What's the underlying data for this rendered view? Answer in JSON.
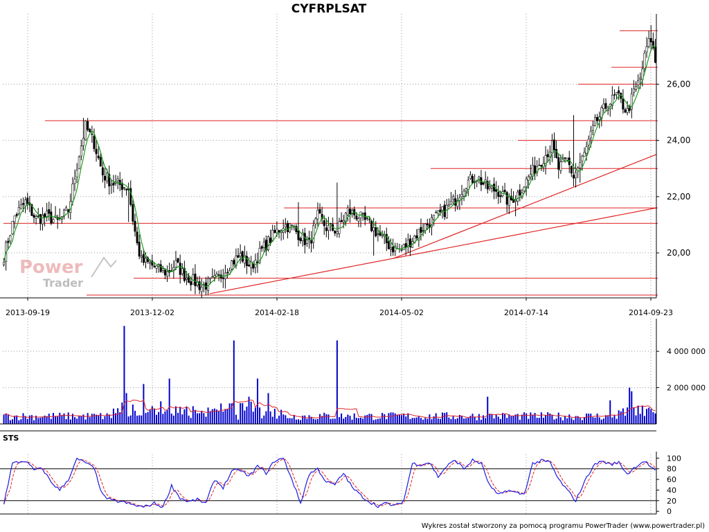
{
  "chart_data": [
    {
      "type": "candlestick",
      "title": "CYFRPLSAT",
      "x_tick_labels": [
        "2013-09-19",
        "2013-12-02",
        "2014-02-18",
        "2014-05-02",
        "2014-07-14",
        "2014-09-23"
      ],
      "y_tick_labels": [
        "20,00",
        "22,00",
        "24,00",
        "26,00"
      ],
      "ylim": [
        18.4,
        28.5
      ],
      "grid": true,
      "close_anchors": [
        [
          0,
          19.9
        ],
        [
          5,
          21.3
        ],
        [
          10,
          21.8
        ],
        [
          15,
          21.2
        ],
        [
          20,
          21.3
        ],
        [
          25,
          21.1
        ],
        [
          30,
          21.5
        ],
        [
          35,
          23.5
        ],
        [
          38,
          24.5
        ],
        [
          42,
          23.9
        ],
        [
          46,
          22.8
        ],
        [
          50,
          22.5
        ],
        [
          55,
          22.4
        ],
        [
          58,
          22.3
        ],
        [
          60,
          21.2
        ],
        [
          62,
          20.3
        ],
        [
          64,
          19.7
        ],
        [
          68,
          19.6
        ],
        [
          72,
          19.4
        ],
        [
          76,
          19.3
        ],
        [
          80,
          19.6
        ],
        [
          84,
          19.2
        ],
        [
          88,
          19.0
        ],
        [
          92,
          18.8
        ],
        [
          95,
          18.9
        ],
        [
          100,
          19.1
        ],
        [
          105,
          19.6
        ],
        [
          110,
          19.9
        ],
        [
          115,
          19.5
        ],
        [
          120,
          20.1
        ],
        [
          125,
          20.6
        ],
        [
          130,
          21.0
        ],
        [
          134,
          20.9
        ],
        [
          138,
          20.6
        ],
        [
          142,
          20.3
        ],
        [
          146,
          21.3
        ],
        [
          150,
          20.9
        ],
        [
          155,
          20.8
        ],
        [
          160,
          21.5
        ],
        [
          165,
          21.3
        ],
        [
          170,
          21.0
        ],
        [
          175,
          20.6
        ],
        [
          180,
          20.2
        ],
        [
          185,
          20.1
        ],
        [
          190,
          20.5
        ],
        [
          195,
          20.9
        ],
        [
          200,
          21.2
        ],
        [
          205,
          21.5
        ],
        [
          210,
          21.9
        ],
        [
          215,
          22.5
        ],
        [
          220,
          22.7
        ],
        [
          225,
          22.3
        ],
        [
          230,
          22.2
        ],
        [
          235,
          21.8
        ],
        [
          240,
          22.2
        ],
        [
          245,
          22.8
        ],
        [
          250,
          23.3
        ],
        [
          255,
          23.8
        ],
        [
          258,
          23.0
        ],
        [
          262,
          23.3
        ],
        [
          265,
          22.7
        ],
        [
          270,
          23.5
        ],
        [
          275,
          24.6
        ],
        [
          280,
          25.2
        ],
        [
          285,
          25.6
        ],
        [
          290,
          25.0
        ],
        [
          293,
          25.7
        ],
        [
          296,
          26.2
        ],
        [
          299,
          27.3
        ],
        [
          301,
          27.6
        ],
        [
          303,
          26.8
        ]
      ],
      "events": [
        [
          37,
          24.8
        ],
        [
          58,
          21.1
        ],
        [
          137,
          21.8
        ],
        [
          155,
          22.5
        ],
        [
          172,
          19.9
        ],
        [
          238,
          21.3
        ],
        [
          265,
          24.9
        ],
        [
          268,
          22.5
        ],
        [
          301,
          28.1
        ]
      ]
    },
    {
      "type": "bar",
      "title": "",
      "y_tick_labels": [
        "2 000 000",
        "4 000 000"
      ],
      "ylim": [
        0,
        5800000
      ],
      "spikes": [
        [
          56,
          5400000
        ],
        [
          57,
          1700000
        ],
        [
          65,
          2200000
        ],
        [
          77,
          2500000
        ],
        [
          107,
          4600000
        ],
        [
          114,
          1500000
        ],
        [
          118,
          2500000
        ],
        [
          123,
          1700000
        ],
        [
          155,
          4600000
        ],
        [
          225,
          1500000
        ],
        [
          282,
          1300000
        ],
        [
          291,
          2000000
        ],
        [
          292,
          1800000
        ]
      ]
    },
    {
      "type": "line",
      "title": "STS",
      "y_tick_labels": [
        "0",
        "20",
        "40",
        "60",
        "80",
        "100"
      ],
      "ylim": [
        -5,
        107
      ],
      "reference_lines": [
        20,
        80
      ],
      "k_anchors": [
        [
          0,
          15
        ],
        [
          4,
          90
        ],
        [
          10,
          95
        ],
        [
          14,
          78
        ],
        [
          18,
          80
        ],
        [
          22,
          55
        ],
        [
          26,
          40
        ],
        [
          30,
          60
        ],
        [
          34,
          98
        ],
        [
          38,
          92
        ],
        [
          42,
          80
        ],
        [
          46,
          30
        ],
        [
          50,
          20
        ],
        [
          55,
          18
        ],
        [
          60,
          12
        ],
        [
          65,
          8
        ],
        [
          70,
          15
        ],
        [
          74,
          8
        ],
        [
          78,
          48
        ],
        [
          82,
          25
        ],
        [
          86,
          18
        ],
        [
          90,
          22
        ],
        [
          94,
          15
        ],
        [
          98,
          60
        ],
        [
          102,
          45
        ],
        [
          106,
          75
        ],
        [
          110,
          78
        ],
        [
          114,
          65
        ],
        [
          118,
          85
        ],
        [
          122,
          72
        ],
        [
          126,
          95
        ],
        [
          130,
          100
        ],
        [
          134,
          60
        ],
        [
          138,
          15
        ],
        [
          142,
          70
        ],
        [
          146,
          80
        ],
        [
          150,
          55
        ],
        [
          154,
          50
        ],
        [
          158,
          72
        ],
        [
          162,
          45
        ],
        [
          166,
          30
        ],
        [
          170,
          18
        ],
        [
          174,
          10
        ],
        [
          178,
          15
        ],
        [
          182,
          10
        ],
        [
          186,
          20
        ],
        [
          190,
          90
        ],
        [
          194,
          88
        ],
        [
          198,
          92
        ],
        [
          202,
          65
        ],
        [
          206,
          85
        ],
        [
          210,
          96
        ],
        [
          214,
          80
        ],
        [
          218,
          96
        ],
        [
          222,
          90
        ],
        [
          226,
          48
        ],
        [
          230,
          30
        ],
        [
          234,
          40
        ],
        [
          238,
          35
        ],
        [
          242,
          32
        ],
        [
          246,
          90
        ],
        [
          250,
          95
        ],
        [
          254,
          92
        ],
        [
          258,
          60
        ],
        [
          262,
          40
        ],
        [
          266,
          20
        ],
        [
          270,
          55
        ],
        [
          274,
          85
        ],
        [
          278,
          95
        ],
        [
          282,
          88
        ],
        [
          286,
          92
        ],
        [
          290,
          70
        ],
        [
          294,
          85
        ],
        [
          298,
          95
        ],
        [
          303,
          75
        ]
      ]
    }
  ],
  "footer": "Wykres został stworzony za pomocą programu PowerTrader (www.powertrader.pl)"
}
